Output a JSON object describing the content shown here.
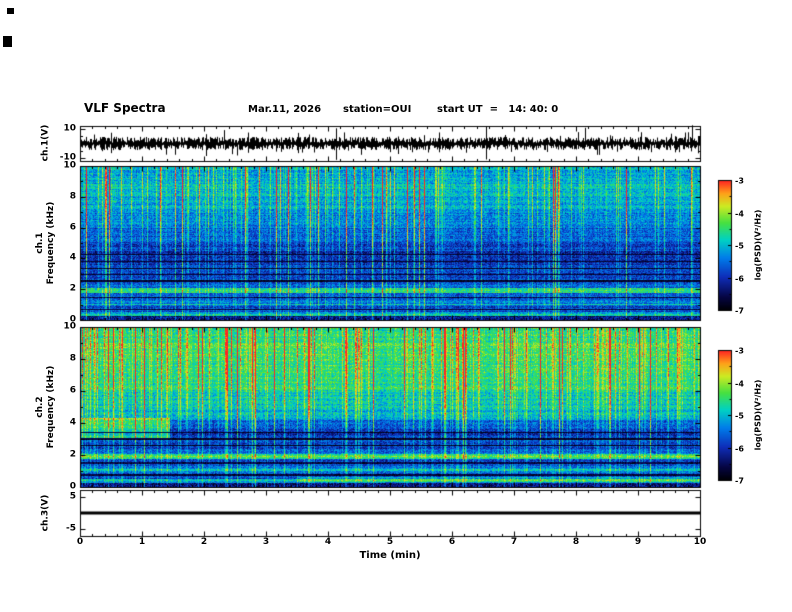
{
  "header": {
    "title": "VLF Spectra",
    "date": "Mar.11, 2026",
    "station": "station=OUI",
    "start_ut": "start UT  =   14: 40: 0"
  },
  "xaxis": {
    "label": "Time (min)",
    "ticks": [
      0,
      1,
      2,
      3,
      4,
      5,
      6,
      7,
      8,
      9,
      10
    ],
    "range": [
      0,
      10
    ]
  },
  "panels": [
    {
      "name": "ch1-voltage",
      "ylabel": "ch.1(V)",
      "y_range": [
        -12,
        12
      ],
      "y_ticks_labeled": [
        10,
        -10
      ],
      "y_ticks_minor": [
        5,
        0,
        -5
      ]
    },
    {
      "name": "ch1-spectrogram",
      "ylabel_line1": "ch.1",
      "ylabel_line2": "Frequency (kHz)",
      "y_range": [
        0,
        10
      ],
      "y_ticks_labeled": [
        0,
        2,
        4,
        6,
        8,
        10
      ],
      "y_ticks_minor": [
        1,
        3,
        5,
        7,
        9
      ]
    },
    {
      "name": "ch2-spectrogram",
      "ylabel_line1": "ch.2",
      "ylabel_line2": "Frequency (kHz)",
      "y_range": [
        0,
        10
      ],
      "y_ticks_labeled": [
        0,
        2,
        4,
        6,
        8,
        10
      ],
      "y_ticks_minor": [
        1,
        3,
        5,
        7,
        9
      ]
    },
    {
      "name": "ch3-voltage",
      "ylabel": "ch.3(V)",
      "y_range": [
        -7,
        7
      ],
      "y_ticks_labeled": [
        5,
        -5
      ],
      "y_ticks_minor": [
        0
      ]
    }
  ],
  "colorbars": [
    {
      "label": "log(PSD)(V²/Hz)",
      "ticks": [
        -3,
        -4,
        -5,
        -6,
        -7
      ],
      "range": [
        -3,
        -7
      ]
    },
    {
      "label": "log(PSD)(V²/Hz)",
      "ticks": [
        -3,
        -4,
        -5,
        -6,
        -7
      ],
      "range": [
        -3,
        -7
      ]
    }
  ],
  "chart_data": [
    {
      "id": "ch1_waveform",
      "type": "line",
      "title": "ch.1(V) time series",
      "x_range_min": [
        0,
        10
      ],
      "y_range_V": [
        -12,
        12
      ],
      "y_ticks_V": [
        10,
        -10
      ],
      "signal": {
        "kind": "continuous broadband noise",
        "mean_V": 0,
        "typical_amplitude_V": 2,
        "peak_amplitude_V": 6
      }
    },
    {
      "id": "ch1_spectrogram",
      "type": "heatmap",
      "title": "ch.1 VLF spectrogram",
      "x_range_min": [
        0,
        10
      ],
      "y_range_kHz": [
        0,
        10
      ],
      "z_label": "log(PSD)(V²/Hz)",
      "z_range": [
        -7,
        -3
      ],
      "pixel_noise_psd": 0.45,
      "row_jitter_psd": 0.2,
      "background_bands": [
        {
          "f_kHz": [
            9,
            10
          ],
          "psd": -5.3
        },
        {
          "f_kHz": [
            8,
            9
          ],
          "psd": -5.2
        },
        {
          "f_kHz": [
            7,
            8
          ],
          "psd": -5.3
        },
        {
          "f_kHz": [
            6,
            7
          ],
          "psd": -5.5
        },
        {
          "f_kHz": [
            5,
            6
          ],
          "psd": -5.8
        },
        {
          "f_kHz": [
            4.5,
            5
          ],
          "psd": -6.0
        },
        {
          "f_kHz": [
            3.6,
            4.5
          ],
          "psd": -6.2
        },
        {
          "f_kHz": [
            3.0,
            3.6
          ],
          "psd": -6.0
        },
        {
          "f_kHz": [
            2.4,
            3.0
          ],
          "psd": -5.9
        },
        {
          "f_kHz": [
            2.05,
            2.4
          ],
          "psd": -5.7
        },
        {
          "f_kHz": [
            1.75,
            2.05
          ],
          "psd": -4.8
        },
        {
          "f_kHz": [
            1.3,
            1.75
          ],
          "psd": -5.8
        },
        {
          "f_kHz": [
            0.9,
            1.3
          ],
          "psd": -5.5
        },
        {
          "f_kHz": [
            0.5,
            0.9
          ],
          "psd": -5.9
        },
        {
          "f_kHz": [
            0.25,
            0.5
          ],
          "psd": -5.2
        },
        {
          "f_kHz": [
            0,
            0.25
          ],
          "psd": -6.3
        }
      ],
      "bright_lines": [
        {
          "f": 1.9,
          "hw": 0.08,
          "psd": -4.6
        },
        {
          "f": 1.0,
          "hw": 0.05,
          "psd": -5.1
        },
        {
          "f": 0.35,
          "hw": 0.06,
          "psd": -4.9
        }
      ],
      "dark_lines": [
        {
          "f": 2.55,
          "hw": 0.05,
          "psd": -6.9
        },
        {
          "f": 2.95,
          "hw": 0.04,
          "psd": -6.85
        },
        {
          "f": 3.35,
          "hw": 0.04,
          "psd": -6.85
        },
        {
          "f": 3.8,
          "hw": 0.04,
          "psd": -6.9
        },
        {
          "f": 4.25,
          "hw": 0.04,
          "psd": -6.85
        },
        {
          "f": 1.45,
          "hw": 0.04,
          "psd": -6.7
        },
        {
          "f": 0.7,
          "hw": 0.04,
          "psd": -6.8
        }
      ],
      "impulsive_streaks": {
        "strong_prob": 0.04,
        "medium_prob": 0.18,
        "strong_boost_psd": [
          1.8,
          3.4
        ],
        "medium_boost_psd": [
          0.6,
          1.6
        ],
        "base_boost_psd": 0.4,
        "weight_low_f": 0.35,
        "weight_high_f": 1.0
      },
      "features": []
    },
    {
      "id": "ch2_spectrogram",
      "type": "heatmap",
      "title": "ch.2 VLF spectrogram",
      "x_range_min": [
        0,
        10
      ],
      "y_range_kHz": [
        0,
        10
      ],
      "z_label": "log(PSD)(V²/Hz)",
      "z_range": [
        -7,
        -3
      ],
      "pixel_noise_psd": 0.45,
      "row_jitter_psd": 0.2,
      "background_bands": [
        {
          "f_kHz": [
            9,
            10
          ],
          "psd": -4.8
        },
        {
          "f_kHz": [
            8,
            9
          ],
          "psd": -4.6
        },
        {
          "f_kHz": [
            7,
            8
          ],
          "psd": -4.7
        },
        {
          "f_kHz": [
            6,
            7
          ],
          "psd": -4.8
        },
        {
          "f_kHz": [
            5,
            6
          ],
          "psd": -5.0
        },
        {
          "f_kHz": [
            4.2,
            5
          ],
          "psd": -5.2
        },
        {
          "f_kHz": [
            3.6,
            4.2
          ],
          "psd": -5.8
        },
        {
          "f_kHz": [
            3.0,
            3.6
          ],
          "psd": -6.1
        },
        {
          "f_kHz": [
            2.4,
            3.0
          ],
          "psd": -5.95
        },
        {
          "f_kHz": [
            2.05,
            2.4
          ],
          "psd": -5.7
        },
        {
          "f_kHz": [
            1.75,
            2.05
          ],
          "psd": -4.7
        },
        {
          "f_kHz": [
            1.3,
            1.75
          ],
          "psd": -5.9
        },
        {
          "f_kHz": [
            0.9,
            1.3
          ],
          "psd": -5.55
        },
        {
          "f_kHz": [
            0.5,
            0.9
          ],
          "psd": -5.9
        },
        {
          "f_kHz": [
            0.25,
            0.5
          ],
          "psd": -5.3
        },
        {
          "f_kHz": [
            0,
            0.25
          ],
          "psd": -6.35
        }
      ],
      "bright_lines": [
        {
          "f": 1.9,
          "hw": 0.08,
          "psd": -4.5
        },
        {
          "f": 1.05,
          "hw": 0.05,
          "psd": -5.1
        },
        {
          "f": 0.45,
          "hw": 0.08,
          "psd": -4.9
        }
      ],
      "dark_lines": [
        {
          "f": 2.6,
          "hw": 0.05,
          "psd": -6.9
        },
        {
          "f": 3.0,
          "hw": 0.04,
          "psd": -6.85
        },
        {
          "f": 3.4,
          "hw": 0.04,
          "psd": -6.85
        },
        {
          "f": 1.5,
          "hw": 0.04,
          "psd": -6.7
        },
        {
          "f": 0.75,
          "hw": 0.04,
          "psd": -6.8
        }
      ],
      "impulsive_streaks": {
        "strong_prob": 0.06,
        "medium_prob": 0.3,
        "strong_boost_psd": [
          1.8,
          3.6
        ],
        "medium_boost_psd": [
          0.8,
          1.8
        ],
        "base_boost_psd": 0.5,
        "weight_low_f": 0.3,
        "weight_high_f": 1.0
      },
      "features": [
        {
          "kind": "enhanced patch",
          "t_min": [
            0,
            1.45
          ],
          "f_kHz": [
            3.0,
            4.3
          ],
          "delta_psd": 1.1
        },
        {
          "kind": "band enhancement",
          "t_min": [
            3.5,
            10
          ],
          "f_kHz": [
            0.3,
            0.6
          ],
          "delta_psd": 0.6
        }
      ]
    },
    {
      "id": "ch3_flatline",
      "type": "line",
      "title": "ch.3(V) time series",
      "x_range_min": [
        0,
        10
      ],
      "y_range_V": [
        -7,
        7
      ],
      "y_ticks_V": [
        5,
        -5
      ],
      "signal": {
        "kind": "constant",
        "value_V": 0,
        "line_thickness_px": 3
      }
    }
  ]
}
